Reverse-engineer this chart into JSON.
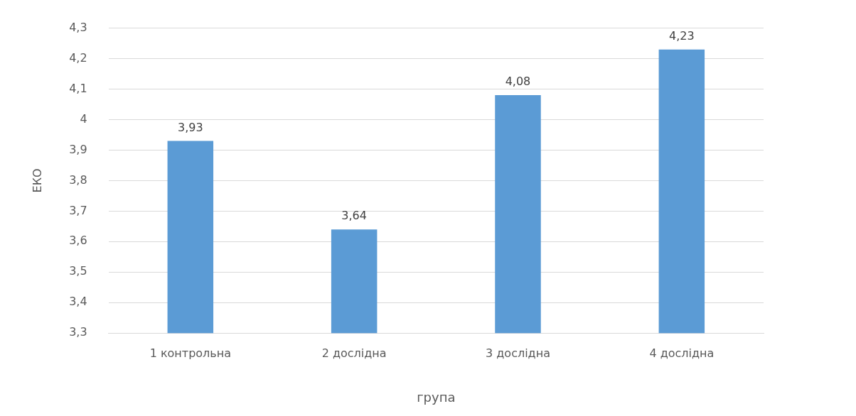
{
  "chart_data": {
    "type": "bar",
    "xlabel": "група",
    "ylabel": "ЕКО",
    "categories": [
      "1 контрольна",
      "2 дослідна",
      "3 дослідна",
      "4 дослідна"
    ],
    "values": [
      3.93,
      3.64,
      4.08,
      4.23
    ],
    "color": "#5b9bd5",
    "value_labels": [
      "3,93",
      "3,64",
      "4,08",
      "4,23"
    ],
    "ylim": [
      3.3,
      4.3
    ],
    "yticks": [
      {
        "value": 3.3,
        "label": "3,3"
      },
      {
        "value": 3.4,
        "label": "3,4"
      },
      {
        "value": 3.5,
        "label": "3,5"
      },
      {
        "value": 3.6,
        "label": "3,6"
      },
      {
        "value": 3.7,
        "label": "3,7"
      },
      {
        "value": 3.8,
        "label": "3,8"
      },
      {
        "value": 3.9,
        "label": "3,9"
      },
      4,
      {
        "value": 4.1,
        "label": "4,1"
      },
      {
        "value": 4.2,
        "label": "4,2"
      },
      {
        "value": 4.3,
        "label": "4,3"
      }
    ],
    "grid": "y",
    "legend": false
  }
}
